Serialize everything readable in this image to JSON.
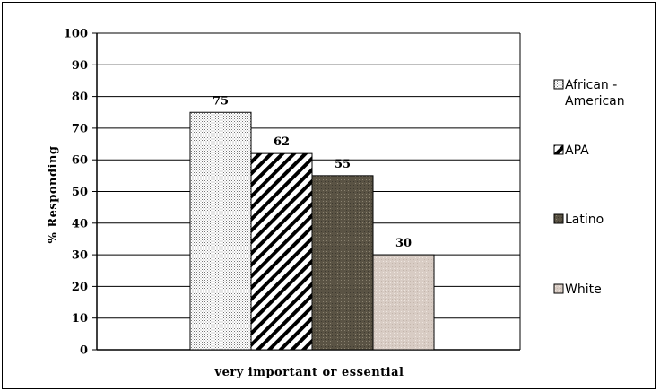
{
  "chart_data": {
    "type": "bar",
    "title": "",
    "xlabel": "very important or essential",
    "ylabel": "% Responding",
    "ylim": [
      0,
      100
    ],
    "yticks": [
      0,
      10,
      20,
      30,
      40,
      50,
      60,
      70,
      80,
      90,
      100
    ],
    "grid": true,
    "legend_position": "right",
    "categories": [
      "very important or essential"
    ],
    "series": [
      {
        "name": "African - American",
        "values": [
          75
        ],
        "data_label": "75",
        "pattern": "dots",
        "color": "#ffffff",
        "legend_lines": [
          "African -",
          "American"
        ]
      },
      {
        "name": "APA",
        "values": [
          62
        ],
        "data_label": "62",
        "pattern": "diagonal-stripes",
        "color": "#000000",
        "legend_lines": [
          "APA"
        ]
      },
      {
        "name": "Latino",
        "values": [
          55
        ],
        "data_label": "55",
        "pattern": "dark-speckle",
        "color": "#5a5344",
        "legend_lines": [
          "Latino"
        ]
      },
      {
        "name": "White",
        "values": [
          30
        ],
        "data_label": "30",
        "pattern": "light-speckle",
        "color": "#d8ccc4",
        "legend_lines": [
          "White"
        ]
      }
    ]
  }
}
